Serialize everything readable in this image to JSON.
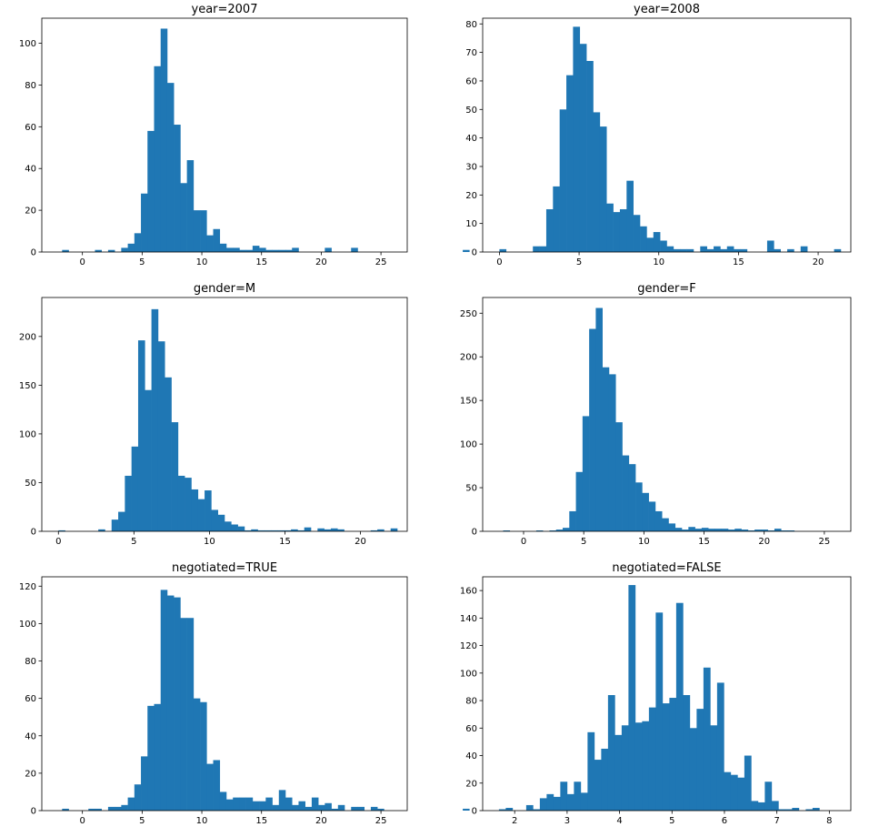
{
  "figure": {
    "bar_color": "#1f77b4",
    "axis_color": "#000000",
    "background": "#ffffff"
  },
  "chart_data": [
    {
      "type": "bar",
      "title": "year=2007",
      "xlabel": "",
      "ylabel": "",
      "xlim": [
        -3.4,
        27.2
      ],
      "ylim": [
        0,
        112
      ],
      "xticks": [
        0,
        5,
        10,
        15,
        20,
        25
      ],
      "yticks": [
        0,
        20,
        40,
        60,
        80,
        100
      ],
      "bin_start": -1.7,
      "bin_width": 0.55,
      "values": [
        1,
        0,
        0,
        0,
        0,
        1,
        0,
        1,
        0,
        2,
        4,
        9,
        28,
        58,
        89,
        107,
        81,
        61,
        33,
        44,
        20,
        20,
        8,
        11,
        4,
        2,
        2,
        1,
        1,
        3,
        2,
        1,
        1,
        1,
        1,
        2,
        0,
        0,
        0,
        0,
        2,
        0,
        0,
        0,
        2,
        0,
        0,
        0,
        0,
        0,
        0,
        0,
        0,
        0,
        0,
        0,
        0,
        0,
        0,
        0,
        0,
        1
      ]
    },
    {
      "type": "bar",
      "title": "year=2008",
      "xlabel": "",
      "ylabel": "",
      "xlim": [
        -1.05,
        22.05
      ],
      "ylim": [
        0,
        82
      ],
      "xticks": [
        0,
        5,
        10,
        15,
        20
      ],
      "yticks": [
        0,
        10,
        20,
        30,
        40,
        50,
        60,
        70,
        80
      ],
      "bin_start": 0,
      "bin_width": 0.42,
      "values": [
        1,
        0,
        0,
        0,
        0,
        2,
        2,
        15,
        23,
        50,
        62,
        79,
        73,
        67,
        49,
        44,
        17,
        14,
        15,
        25,
        13,
        9,
        5,
        7,
        4,
        2,
        1,
        1,
        1,
        0,
        2,
        1,
        2,
        1,
        2,
        1,
        1,
        0,
        0,
        0,
        4,
        1,
        0,
        1,
        0,
        2,
        0,
        0,
        0,
        0,
        1
      ]
    },
    {
      "type": "bar",
      "title": "gender=M",
      "xlabel": "",
      "ylabel": "",
      "xlim": [
        -1.1,
        23.1
      ],
      "ylim": [
        0,
        240
      ],
      "xticks": [
        0,
        5,
        10,
        15,
        20
      ],
      "yticks": [
        0,
        50,
        100,
        150,
        200
      ],
      "bin_start": 0,
      "bin_width": 0.44,
      "values": [
        1,
        0,
        0,
        0,
        0,
        0,
        2,
        0,
        12,
        20,
        57,
        87,
        196,
        145,
        228,
        195,
        158,
        112,
        57,
        55,
        43,
        33,
        42,
        22,
        17,
        10,
        7,
        5,
        1,
        2,
        1,
        1,
        1,
        1,
        1,
        2,
        1,
        4,
        0,
        3,
        2,
        3,
        2,
        0,
        0,
        0,
        0,
        1,
        2,
        0,
        3
      ]
    },
    {
      "type": "bar",
      "title": "gender=F",
      "xlabel": "",
      "ylabel": "",
      "xlim": [
        -3.4,
        27.2
      ],
      "ylim": [
        0,
        268
      ],
      "xticks": [
        0,
        5,
        10,
        15,
        20,
        25
      ],
      "yticks": [
        0,
        50,
        100,
        150,
        200,
        250
      ],
      "bin_start": -1.7,
      "bin_width": 0.55,
      "values": [
        1,
        0,
        0,
        0,
        0,
        1,
        0,
        1,
        2,
        4,
        23,
        68,
        132,
        232,
        256,
        188,
        180,
        125,
        87,
        77,
        56,
        44,
        34,
        23,
        15,
        9,
        4,
        2,
        5,
        3,
        4,
        3,
        3,
        3,
        2,
        3,
        2,
        1,
        2,
        2,
        1,
        3,
        1,
        1,
        0,
        0,
        0,
        0,
        0,
        0,
        0,
        0,
        0,
        0,
        0,
        0,
        0,
        0,
        0,
        0,
        0,
        1
      ]
    },
    {
      "type": "bar",
      "title": "negotiated=TRUE",
      "xlabel": "",
      "ylabel": "",
      "xlim": [
        -3.4,
        27.2
      ],
      "ylim": [
        0,
        125
      ],
      "xticks": [
        0,
        5,
        10,
        15,
        20,
        25
      ],
      "yticks": [
        0,
        20,
        40,
        60,
        80,
        100,
        120
      ],
      "bin_start": -1.7,
      "bin_width": 0.55,
      "values": [
        1,
        0,
        0,
        0,
        1,
        1,
        0,
        2,
        2,
        3,
        7,
        14,
        29,
        56,
        57,
        118,
        115,
        114,
        103,
        103,
        60,
        58,
        25,
        27,
        10,
        6,
        7,
        7,
        7,
        5,
        5,
        7,
        3,
        11,
        7,
        3,
        5,
        2,
        7,
        3,
        4,
        1,
        3,
        0,
        2,
        2,
        0,
        2,
        1,
        0,
        0,
        0,
        0,
        0,
        0,
        0,
        0,
        0,
        0,
        0,
        0,
        1
      ]
    },
    {
      "type": "bar",
      "title": "negotiated=FALSE",
      "xlabel": "",
      "ylabel": "",
      "xlim": [
        1.39,
        8.41
      ],
      "ylim": [
        0,
        170
      ],
      "xticks": [
        2,
        3,
        4,
        5,
        6,
        7,
        8
      ],
      "yticks": [
        0,
        20,
        40,
        60,
        80,
        100,
        120,
        140,
        160
      ],
      "bin_start": 1.7,
      "bin_width": 0.13,
      "values": [
        1,
        2,
        0,
        0,
        4,
        1,
        9,
        12,
        10,
        21,
        12,
        21,
        13,
        57,
        37,
        45,
        84,
        55,
        62,
        164,
        64,
        65,
        75,
        144,
        78,
        82,
        151,
        84,
        60,
        74,
        104,
        62,
        93,
        28,
        26,
        24,
        40,
        7,
        6,
        21,
        7,
        1,
        1,
        2,
        0,
        1,
        2
      ]
    }
  ]
}
